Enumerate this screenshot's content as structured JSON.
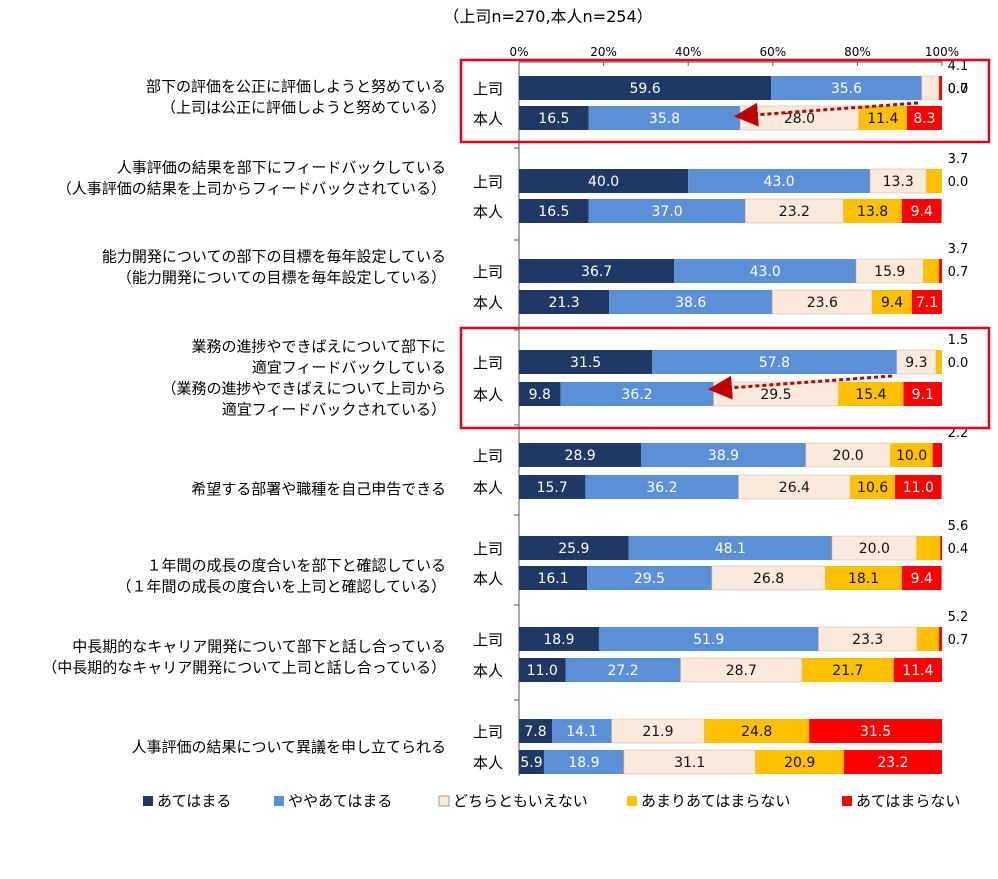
{
  "chart_data": {
    "type": "bar",
    "stacked": true,
    "orientation": "horizontal",
    "subtitle": "（上司n=270,本人n=254）",
    "xlim": [
      0,
      100
    ],
    "x_ticks": [
      "0%",
      "20%",
      "40%",
      "60%",
      "80%",
      "100%"
    ],
    "grid": false,
    "legend_position": "bottom",
    "series": [
      {
        "name": "あてはまる",
        "color": "#1f3864"
      },
      {
        "name": "ややあてはまる",
        "color": "#5b8fd6"
      },
      {
        "name": "どちらともいえない",
        "color": "#fbe9dc"
      },
      {
        "name": "あまりあてはまらない",
        "color": "#ffc000"
      },
      {
        "name": "あてはまらない",
        "color": "#ff0000"
      }
    ],
    "groups": [
      {
        "label_lines": [
          "部下の評価を公正に評価しようと努めている",
          "（上司は公正に評価しようと努めている）"
        ],
        "rows": [
          {
            "label": "上司",
            "values": [
              59.6,
              35.6,
              4.1,
              0.0,
              0.7
            ],
            "labels": [
              "59.6",
              "35.6",
              "4.1",
              "0.0",
              "0.7"
            ]
          },
          {
            "label": "本人",
            "values": [
              16.5,
              35.8,
              28.0,
              11.4,
              8.3
            ],
            "labels": [
              "16.5",
              "35.8",
              "28.0",
              "11.4",
              "8.3"
            ]
          }
        ]
      },
      {
        "label_lines": [
          "人事評価の結果を部下にフィードバックしている",
          "（人事評価の結果を上司からフィードバックされている）"
        ],
        "rows": [
          {
            "label": "上司",
            "values": [
              40.0,
              43.0,
              13.3,
              3.7,
              0.0
            ],
            "labels": [
              "40.0",
              "43.0",
              "13.3",
              "3.7",
              "0.0"
            ]
          },
          {
            "label": "本人",
            "values": [
              16.5,
              37.0,
              23.2,
              13.8,
              9.4
            ],
            "labels": [
              "16.5",
              "37.0",
              "23.2",
              "13.8",
              "9.4"
            ]
          }
        ]
      },
      {
        "label_lines": [
          "能力開発についての部下の目標を毎年設定している",
          "（能力開発についての目標を毎年設定している）"
        ],
        "rows": [
          {
            "label": "上司",
            "values": [
              36.7,
              43.0,
              15.9,
              3.7,
              0.7
            ],
            "labels": [
              "36.7",
              "43.0",
              "15.9",
              "3.7",
              "0.7"
            ]
          },
          {
            "label": "本人",
            "values": [
              21.3,
              38.6,
              23.6,
              9.4,
              7.1
            ],
            "labels": [
              "21.3",
              "38.6",
              "23.6",
              "9.4",
              "7.1"
            ]
          }
        ]
      },
      {
        "label_lines": [
          "業務の進捗やできばえについて部下に",
          "適宜フィードバックしている",
          "（業務の進捗やできばえについて上司から",
          "適宜フィードバックされている）"
        ],
        "rows": [
          {
            "label": "上司",
            "values": [
              31.5,
              57.8,
              9.3,
              1.5,
              0.0
            ],
            "labels": [
              "31.5",
              "57.8",
              "9.3",
              "1.5",
              "0.0"
            ]
          },
          {
            "label": "本人",
            "values": [
              9.8,
              36.2,
              29.5,
              15.4,
              9.1
            ],
            "labels": [
              "9.8",
              "36.2",
              "29.5",
              "15.4",
              "9.1"
            ]
          }
        ]
      },
      {
        "label_lines": [
          "希望する部署や職種を自己申告できる"
        ],
        "rows": [
          {
            "label": "上司",
            "values": [
              28.9,
              38.9,
              20.0,
              10.0,
              2.2
            ],
            "labels": [
              "28.9",
              "38.9",
              "20.0",
              "10.0",
              "2.2"
            ]
          },
          {
            "label": "本人",
            "values": [
              15.7,
              36.2,
              26.4,
              10.6,
              11.0
            ],
            "labels": [
              "15.7",
              "36.2",
              "26.4",
              "10.6",
              "11.0"
            ]
          }
        ]
      },
      {
        "label_lines": [
          "１年間の成長の度合いを部下と確認している",
          "（１年間の成長の度合いを上司と確認している）"
        ],
        "rows": [
          {
            "label": "上司",
            "values": [
              25.9,
              48.1,
              20.0,
              5.6,
              0.4
            ],
            "labels": [
              "25.9",
              "48.1",
              "20.0",
              "5.6",
              "0.4"
            ]
          },
          {
            "label": "本人",
            "values": [
              16.1,
              29.5,
              26.8,
              18.1,
              9.4
            ],
            "labels": [
              "16.1",
              "29.5",
              "26.8",
              "18.1",
              "9.4"
            ]
          }
        ]
      },
      {
        "label_lines": [
          "中長期的なキャリア開発について部下と話し合っている",
          "（中長期的なキャリア開発について上司と話し合っている）"
        ],
        "rows": [
          {
            "label": "上司",
            "values": [
              18.9,
              51.9,
              23.3,
              5.2,
              0.7
            ],
            "labels": [
              "18.9",
              "51.9",
              "23.3",
              "5.2",
              "0.7"
            ]
          },
          {
            "label": "本人",
            "values": [
              11.0,
              27.2,
              28.7,
              21.7,
              11.4
            ],
            "labels": [
              "11.0",
              "27.2",
              "28.7",
              "21.7",
              "11.4"
            ]
          }
        ]
      },
      {
        "label_lines": [
          "人事評価の結果について異議を申し立てられる"
        ],
        "rows": [
          {
            "label": "上司",
            "values": [
              7.8,
              14.1,
              21.9,
              24.8,
              31.5
            ],
            "labels": [
              "7.8",
              "14.1",
              "21.9",
              "24.8",
              "31.5"
            ]
          },
          {
            "label": "本人",
            "values": [
              5.9,
              18.9,
              31.1,
              20.9,
              23.2
            ],
            "labels": [
              "5.9",
              "18.9",
              "31.1",
              "20.9",
              "23.2"
            ]
          }
        ]
      }
    ],
    "highlighted_groups": [
      0,
      3
    ]
  }
}
